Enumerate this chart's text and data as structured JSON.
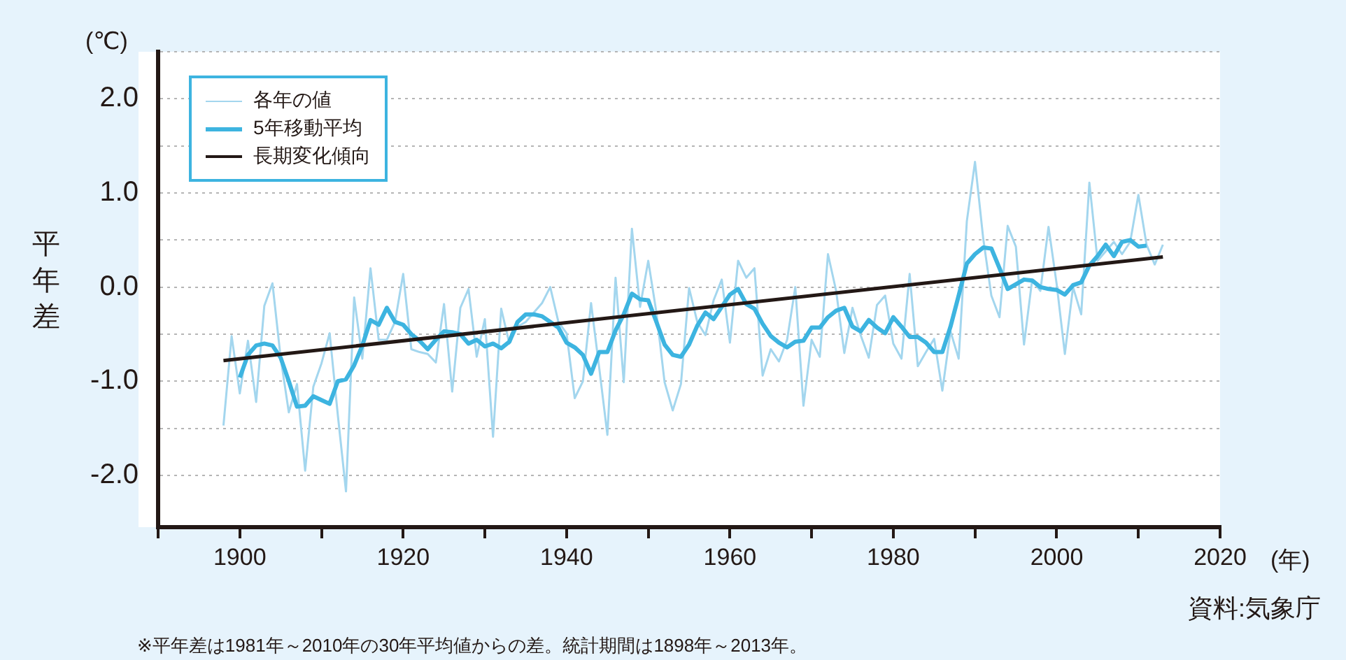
{
  "chart_data": {
    "type": "line",
    "xlabel": "(年)",
    "ylabel": "平年差",
    "annotations": [
      "(℃)",
      "資料:気象庁",
      "※平年差は1981年～2010年の30年平均値からの差。統計期間は1898年～2013年。"
    ],
    "xlim": [
      1890,
      2020
    ],
    "xticks": [
      {
        "value": 1890,
        "label": null
      },
      1900,
      {
        "value": 1910,
        "label": null
      },
      1920,
      {
        "value": 1930,
        "label": null
      },
      1940,
      {
        "value": 1950,
        "label": null
      },
      1960,
      {
        "value": 1970,
        "label": null
      },
      1980,
      {
        "value": 1990,
        "label": null
      },
      2000,
      {
        "value": 2010,
        "label": null
      },
      2020
    ],
    "ylim": [
      -2.55,
      2.5
    ],
    "yticks": [
      {
        "value": -2,
        "label": "-2.0"
      },
      {
        "value": -1.5,
        "label": null
      },
      {
        "value": -1,
        "label": "-1.0"
      },
      {
        "value": -0.5,
        "label": null
      },
      {
        "value": 0,
        "label": "0.0"
      },
      {
        "value": 0.5,
        "label": null
      },
      {
        "value": 1,
        "label": "1.0"
      },
      {
        "value": 1.5,
        "label": null
      },
      {
        "value": 2,
        "label": "2.0"
      },
      {
        "value": 2.5,
        "label": null
      }
    ],
    "grid": "y",
    "legend": "top left",
    "series": [
      {
        "name": "各年の値",
        "color": "#a3d6ee",
        "x": [
          1898,
          1899,
          1900,
          1901,
          1902,
          1903,
          1904,
          1905,
          1906,
          1907,
          1908,
          1909,
          1910,
          1911,
          1912,
          1913,
          1914,
          1915,
          1916,
          1917,
          1918,
          1919,
          1920,
          1921,
          1922,
          1923,
          1924,
          1925,
          1926,
          1927,
          1928,
          1929,
          1930,
          1931,
          1932,
          1933,
          1934,
          1935,
          1936,
          1937,
          1938,
          1939,
          1940,
          1941,
          1942,
          1943,
          1944,
          1945,
          1946,
          1947,
          1948,
          1949,
          1950,
          1951,
          1952,
          1953,
          1954,
          1955,
          1956,
          1957,
          1958,
          1959,
          1960,
          1961,
          1962,
          1963,
          1964,
          1965,
          1966,
          1967,
          1968,
          1969,
          1970,
          1971,
          1972,
          1973,
          1974,
          1975,
          1976,
          1977,
          1978,
          1979,
          1980,
          1981,
          1982,
          1983,
          1984,
          1985,
          1986,
          1987,
          1988,
          1989,
          1990,
          1991,
          1992,
          1993,
          1994,
          1995,
          1996,
          1997,
          1998,
          1999,
          2000,
          2001,
          2002,
          2003,
          2004,
          2005,
          2006,
          2007,
          2008,
          2009,
          2010,
          2011,
          2012,
          2013
        ],
        "values": [
          -1.47,
          -0.52,
          -1.13,
          -0.57,
          -1.22,
          -0.2,
          0.04,
          -0.75,
          -1.33,
          -1.03,
          -1.95,
          -1.06,
          -0.81,
          -0.49,
          -1.36,
          -2.17,
          -0.11,
          -0.76,
          0.2,
          -0.56,
          -0.56,
          -0.37,
          0.14,
          -0.66,
          -0.69,
          -0.71,
          -0.8,
          -0.18,
          -1.11,
          -0.22,
          -0.02,
          -0.74,
          -0.34,
          -1.59,
          -0.23,
          -0.6,
          -0.42,
          -0.37,
          -0.27,
          -0.17,
          0.0,
          -0.37,
          -0.49,
          -1.18,
          -1.0,
          -0.17,
          -0.86,
          -1.57,
          0.1,
          -1.01,
          0.62,
          -0.21,
          0.28,
          -0.27,
          -1.01,
          -1.31,
          -1.03,
          -0.01,
          -0.37,
          -0.51,
          -0.14,
          0.08,
          -0.59,
          0.28,
          0.1,
          0.2,
          -0.94,
          -0.66,
          -0.79,
          -0.56,
          0.0,
          -1.26,
          -0.56,
          -0.74,
          0.35,
          -0.04,
          -0.7,
          -0.22,
          -0.51,
          -0.75,
          -0.19,
          -0.09,
          -0.6,
          -0.76,
          0.14,
          -0.84,
          -0.69,
          -0.55,
          -1.1,
          -0.47,
          -0.76,
          0.7,
          1.33,
          0.52,
          -0.09,
          -0.32,
          0.65,
          0.43,
          -0.61,
          0.08,
          -0.04,
          0.64,
          0.03,
          -0.71,
          0.0,
          -0.29,
          1.11,
          0.28,
          0.38,
          0.48,
          0.35,
          0.48,
          0.98,
          0.45,
          0.24,
          0.45
        ]
      },
      {
        "name": "5年移動平均",
        "color": "#3db4e0",
        "x": [
          1900,
          1901,
          1902,
          1903,
          1904,
          1905,
          1906,
          1907,
          1908,
          1909,
          1910,
          1911,
          1912,
          1913,
          1914,
          1915,
          1916,
          1917,
          1918,
          1919,
          1920,
          1921,
          1922,
          1923,
          1924,
          1925,
          1926,
          1927,
          1928,
          1929,
          1930,
          1931,
          1932,
          1933,
          1934,
          1935,
          1936,
          1937,
          1938,
          1939,
          1940,
          1941,
          1942,
          1943,
          1944,
          1945,
          1946,
          1947,
          1948,
          1949,
          1950,
          1951,
          1952,
          1953,
          1954,
          1955,
          1956,
          1957,
          1958,
          1959,
          1960,
          1961,
          1962,
          1963,
          1964,
          1965,
          1966,
          1967,
          1968,
          1969,
          1970,
          1971,
          1972,
          1973,
          1974,
          1975,
          1976,
          1977,
          1978,
          1979,
          1980,
          1981,
          1982,
          1983,
          1984,
          1985,
          1986,
          1987,
          1988,
          1989,
          1990,
          1991,
          1992,
          1993,
          1994,
          1995,
          1996,
          1997,
          1998,
          1999,
          2000,
          2001,
          2002,
          2003,
          2004,
          2005,
          2006,
          2007,
          2008,
          2009,
          2010,
          2011
        ],
        "values": [
          -0.96,
          -0.72,
          -0.62,
          -0.6,
          -0.62,
          -0.75,
          -1.0,
          -1.27,
          -1.26,
          -1.16,
          -1.2,
          -1.24,
          -1.0,
          -0.98,
          -0.83,
          -0.62,
          -0.35,
          -0.4,
          -0.22,
          -0.37,
          -0.4,
          -0.5,
          -0.57,
          -0.66,
          -0.56,
          -0.47,
          -0.48,
          -0.5,
          -0.6,
          -0.56,
          -0.63,
          -0.6,
          -0.65,
          -0.58,
          -0.37,
          -0.29,
          -0.29,
          -0.31,
          -0.37,
          -0.43,
          -0.59,
          -0.64,
          -0.72,
          -0.92,
          -0.69,
          -0.69,
          -0.46,
          -0.29,
          -0.07,
          -0.13,
          -0.14,
          -0.37,
          -0.61,
          -0.72,
          -0.74,
          -0.61,
          -0.41,
          -0.27,
          -0.34,
          -0.21,
          -0.08,
          -0.02,
          -0.18,
          -0.23,
          -0.39,
          -0.52,
          -0.59,
          -0.64,
          -0.58,
          -0.57,
          -0.43,
          -0.43,
          -0.32,
          -0.25,
          -0.22,
          -0.42,
          -0.47,
          -0.35,
          -0.43,
          -0.49,
          -0.32,
          -0.42,
          -0.53,
          -0.53,
          -0.59,
          -0.69,
          -0.69,
          -0.42,
          -0.09,
          0.25,
          0.35,
          0.42,
          0.41,
          0.2,
          -0.02,
          0.03,
          0.08,
          0.07,
          0.0,
          -0.02,
          -0.03,
          -0.08,
          0.02,
          0.05,
          0.23,
          0.33,
          0.45,
          0.33,
          0.48,
          0.5,
          0.43,
          0.44
        ]
      },
      {
        "name": "長期変化傾向",
        "color": "#231815",
        "x": [
          1898,
          2013
        ],
        "values": [
          -0.78,
          0.32
        ]
      }
    ]
  }
}
